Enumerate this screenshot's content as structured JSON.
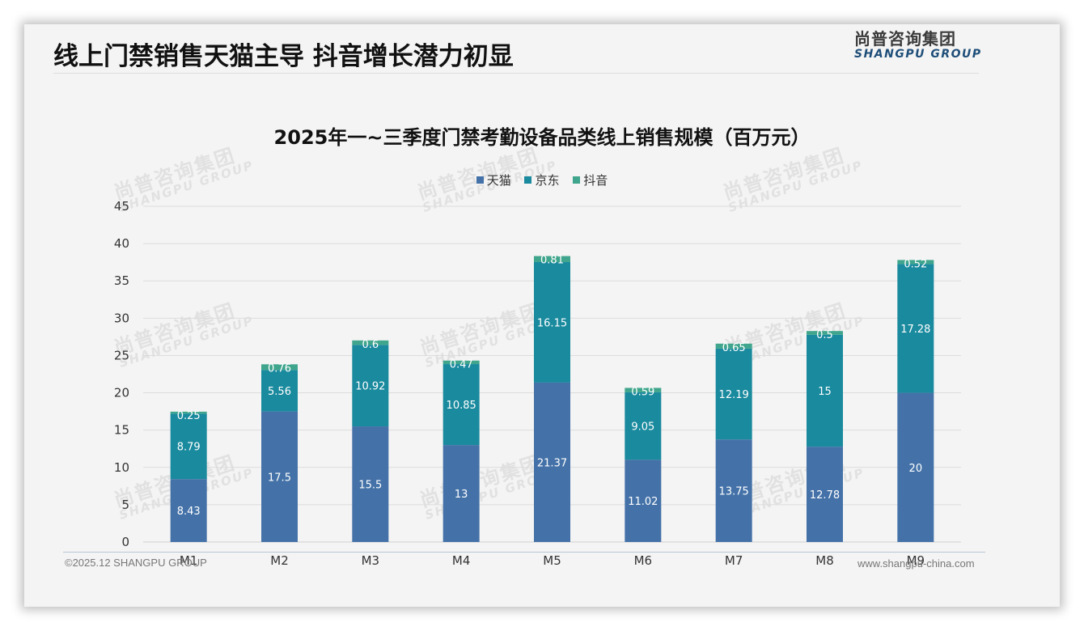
{
  "slide": {
    "headline": "线上门禁销售天猫主导 抖音增长潜力初显",
    "logo": {
      "cn": "尚普咨询集团",
      "en": "SHANGPU GROUP"
    },
    "footer": {
      "copyright": "©2025.12 SHANGPU GROUP",
      "website": "www.shangpu-china.com"
    },
    "watermark": {
      "cn": "尚普咨询集团",
      "en": "SHANGPU GROUP"
    }
  },
  "chart_data": {
    "type": "bar",
    "stacked": true,
    "title": "2025年一~三季度门禁考勤设备品类线上销售规模（百万元）",
    "xlabel": "",
    "ylabel": "",
    "categories": [
      "M1",
      "M2",
      "M3",
      "M4",
      "M5",
      "M6",
      "M7",
      "M8",
      "M9"
    ],
    "series": [
      {
        "name": "天猫",
        "color": "#4472a8",
        "values": [
          8.43,
          17.5,
          15.5,
          13,
          21.37,
          11.02,
          13.75,
          12.78,
          20
        ]
      },
      {
        "name": "京东",
        "color": "#1a8a9e",
        "values": [
          8.79,
          5.56,
          10.92,
          10.85,
          16.15,
          9.05,
          12.19,
          15,
          17.28
        ]
      },
      {
        "name": "抖音",
        "color": "#3fa58c",
        "values": [
          0.25,
          0.76,
          0.6,
          0.47,
          0.81,
          0.59,
          0.65,
          0.5,
          0.52
        ]
      }
    ],
    "ylim": [
      0,
      45
    ],
    "yticks": [
      0,
      5,
      10,
      15,
      20,
      25,
      30,
      35,
      40,
      45
    ],
    "grid": true,
    "legend_position": "top-center",
    "data_labels": true
  }
}
